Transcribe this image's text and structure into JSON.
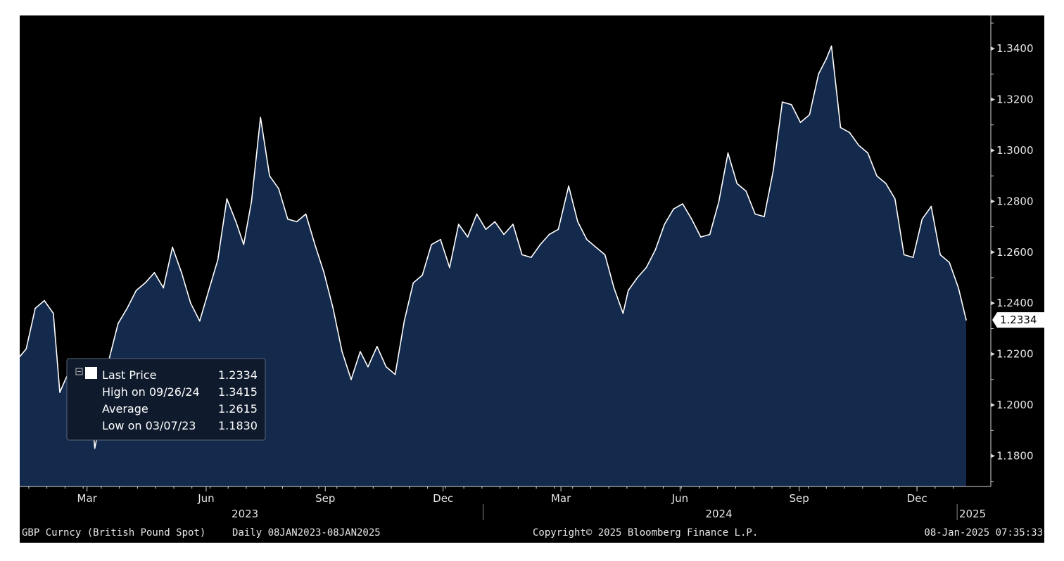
{
  "colors": {
    "background": "#000000",
    "area_fill": "#142a4d",
    "line": "#ffffff",
    "axis": "#d9d9d9",
    "legend_bg": "#0f1b2d"
  },
  "footer": {
    "security": "GBP Curncy (British Pound Spot)",
    "range": "Daily 08JAN2023-08JAN2025",
    "copyright": "Copyright© 2025 Bloomberg Finance L.P.",
    "timestamp": "08-Jan-2025 07:35:33"
  },
  "legend": {
    "rows": [
      {
        "label": "Last Price",
        "value": "1.2334"
      },
      {
        "label": "High on 09/26/24",
        "value": "1.3415"
      },
      {
        "label": "Average",
        "value": "1.2615"
      },
      {
        "label": "Low on 03/07/23",
        "value": "1.1830"
      }
    ]
  },
  "chart_data": {
    "type": "area",
    "title": "",
    "xlabel": "",
    "ylabel": "",
    "ylim": [
      1.168,
      1.353
    ],
    "yticks": [
      "1.1800",
      "1.2000",
      "1.2200",
      "1.2400",
      "1.2600",
      "1.2800",
      "1.3000",
      "1.3200",
      "1.3400"
    ],
    "ytick_values": [
      1.18,
      1.2,
      1.22,
      1.24,
      1.26,
      1.28,
      1.3,
      1.32,
      1.34
    ],
    "last_value_label": "1.2334",
    "last_value": 1.2334,
    "x_start": "2023-01-08",
    "x_end": "2025-01-08",
    "month_ticks": [
      {
        "label": "Mar",
        "date": "2023-03-01"
      },
      {
        "label": "Jun",
        "date": "2023-06-01"
      },
      {
        "label": "Sep",
        "date": "2023-09-01"
      },
      {
        "label": "Dec",
        "date": "2023-12-01"
      },
      {
        "label": "Mar",
        "date": "2024-03-01"
      },
      {
        "label": "Jun",
        "date": "2024-06-01"
      },
      {
        "label": "Sep",
        "date": "2024-09-01"
      },
      {
        "label": "Dec",
        "date": "2024-12-01"
      }
    ],
    "year_labels": [
      {
        "label": "2023",
        "date": "2023-07-01"
      },
      {
        "label": "2024",
        "date": "2024-07-01"
      },
      {
        "label": "2025",
        "date": "2025-01-01"
      }
    ],
    "series": [
      {
        "name": "Last Price",
        "x": [
          "2023-01-08",
          "2023-01-13",
          "2023-01-20",
          "2023-01-27",
          "2023-02-03",
          "2023-02-08",
          "2023-02-14",
          "2023-02-20",
          "2023-02-26",
          "2023-03-03",
          "2023-03-07",
          "2023-03-12",
          "2023-03-18",
          "2023-03-25",
          "2023-04-01",
          "2023-04-08",
          "2023-04-15",
          "2023-04-22",
          "2023-04-29",
          "2023-05-06",
          "2023-05-13",
          "2023-05-20",
          "2023-05-27",
          "2023-06-03",
          "2023-06-10",
          "2023-06-17",
          "2023-06-24",
          "2023-06-30",
          "2023-07-06",
          "2023-07-13",
          "2023-07-20",
          "2023-07-27",
          "2023-08-03",
          "2023-08-10",
          "2023-08-17",
          "2023-08-24",
          "2023-08-31",
          "2023-09-07",
          "2023-09-14",
          "2023-09-21",
          "2023-09-28",
          "2023-10-04",
          "2023-10-11",
          "2023-10-18",
          "2023-10-25",
          "2023-11-01",
          "2023-11-08",
          "2023-11-15",
          "2023-11-22",
          "2023-11-29",
          "2023-12-06",
          "2023-12-13",
          "2023-12-20",
          "2023-12-27",
          "2024-01-03",
          "2024-01-10",
          "2024-01-17",
          "2024-01-24",
          "2024-01-31",
          "2024-02-07",
          "2024-02-14",
          "2024-02-21",
          "2024-02-28",
          "2024-03-07",
          "2024-03-14",
          "2024-03-21",
          "2024-03-28",
          "2024-04-04",
          "2024-04-11",
          "2024-04-18",
          "2024-04-22",
          "2024-04-29",
          "2024-05-06",
          "2024-05-13",
          "2024-05-20",
          "2024-05-27",
          "2024-06-03",
          "2024-06-10",
          "2024-06-17",
          "2024-06-24",
          "2024-07-01",
          "2024-07-08",
          "2024-07-15",
          "2024-07-22",
          "2024-07-29",
          "2024-08-05",
          "2024-08-12",
          "2024-08-19",
          "2024-08-26",
          "2024-09-02",
          "2024-09-09",
          "2024-09-16",
          "2024-09-22",
          "2024-09-26",
          "2024-10-03",
          "2024-10-10",
          "2024-10-17",
          "2024-10-24",
          "2024-10-31",
          "2024-11-07",
          "2024-11-14",
          "2024-11-21",
          "2024-11-28",
          "2024-12-05",
          "2024-12-12",
          "2024-12-19",
          "2024-12-26",
          "2025-01-02",
          "2025-01-08"
        ],
        "values": [
          1.219,
          1.222,
          1.238,
          1.241,
          1.236,
          1.205,
          1.212,
          1.206,
          1.196,
          1.205,
          1.183,
          1.196,
          1.218,
          1.232,
          1.238,
          1.245,
          1.248,
          1.252,
          1.246,
          1.262,
          1.252,
          1.24,
          1.233,
          1.245,
          1.257,
          1.281,
          1.272,
          1.263,
          1.28,
          1.313,
          1.29,
          1.285,
          1.273,
          1.272,
          1.275,
          1.263,
          1.252,
          1.238,
          1.221,
          1.21,
          1.221,
          1.215,
          1.223,
          1.215,
          1.212,
          1.233,
          1.248,
          1.251,
          1.263,
          1.265,
          1.254,
          1.271,
          1.266,
          1.275,
          1.269,
          1.272,
          1.267,
          1.271,
          1.259,
          1.258,
          1.263,
          1.267,
          1.269,
          1.286,
          1.272,
          1.265,
          1.262,
          1.259,
          1.246,
          1.236,
          1.245,
          1.25,
          1.254,
          1.261,
          1.271,
          1.277,
          1.279,
          1.273,
          1.266,
          1.267,
          1.28,
          1.299,
          1.287,
          1.284,
          1.275,
          1.274,
          1.292,
          1.319,
          1.318,
          1.311,
          1.314,
          1.33,
          1.336,
          1.341,
          1.309,
          1.307,
          1.302,
          1.299,
          1.29,
          1.287,
          1.281,
          1.259,
          1.258,
          1.273,
          1.278,
          1.259,
          1.256,
          1.246,
          1.2334
        ]
      }
    ]
  }
}
